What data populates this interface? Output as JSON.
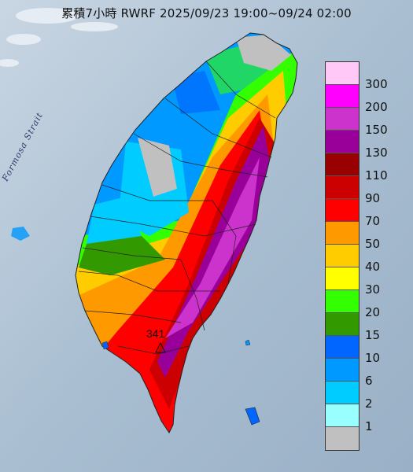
{
  "title": "累積7小時 RWRF 2025/09/23 19:00~09/24 02:00",
  "sea_label": "Formosa Strait",
  "max_marker": {
    "value": "341",
    "icon": "triangle-marker-icon"
  },
  "legend": [
    {
      "label": "300",
      "color": "#ffc8f7"
    },
    {
      "label": "200",
      "color": "#ff00ff"
    },
    {
      "label": "150",
      "color": "#cc33cc"
    },
    {
      "label": "130",
      "color": "#990099"
    },
    {
      "label": "110",
      "color": "#990000"
    },
    {
      "label": "90",
      "color": "#cc0000"
    },
    {
      "label": "70",
      "color": "#ff0000"
    },
    {
      "label": "50",
      "color": "#ff9900"
    },
    {
      "label": "40",
      "color": "#ffcc00"
    },
    {
      "label": "30",
      "color": "#ffff00"
    },
    {
      "label": "20",
      "color": "#33ff00"
    },
    {
      "label": "15",
      "color": "#339900"
    },
    {
      "label": "10",
      "color": "#0066ff"
    },
    {
      "label": "6",
      "color": "#0099ff"
    },
    {
      "label": "2",
      "color": "#00ccff"
    },
    {
      "label": "1",
      "color": "#99ffff"
    },
    {
      "label": "",
      "color": "#c0c0c0"
    }
  ]
}
